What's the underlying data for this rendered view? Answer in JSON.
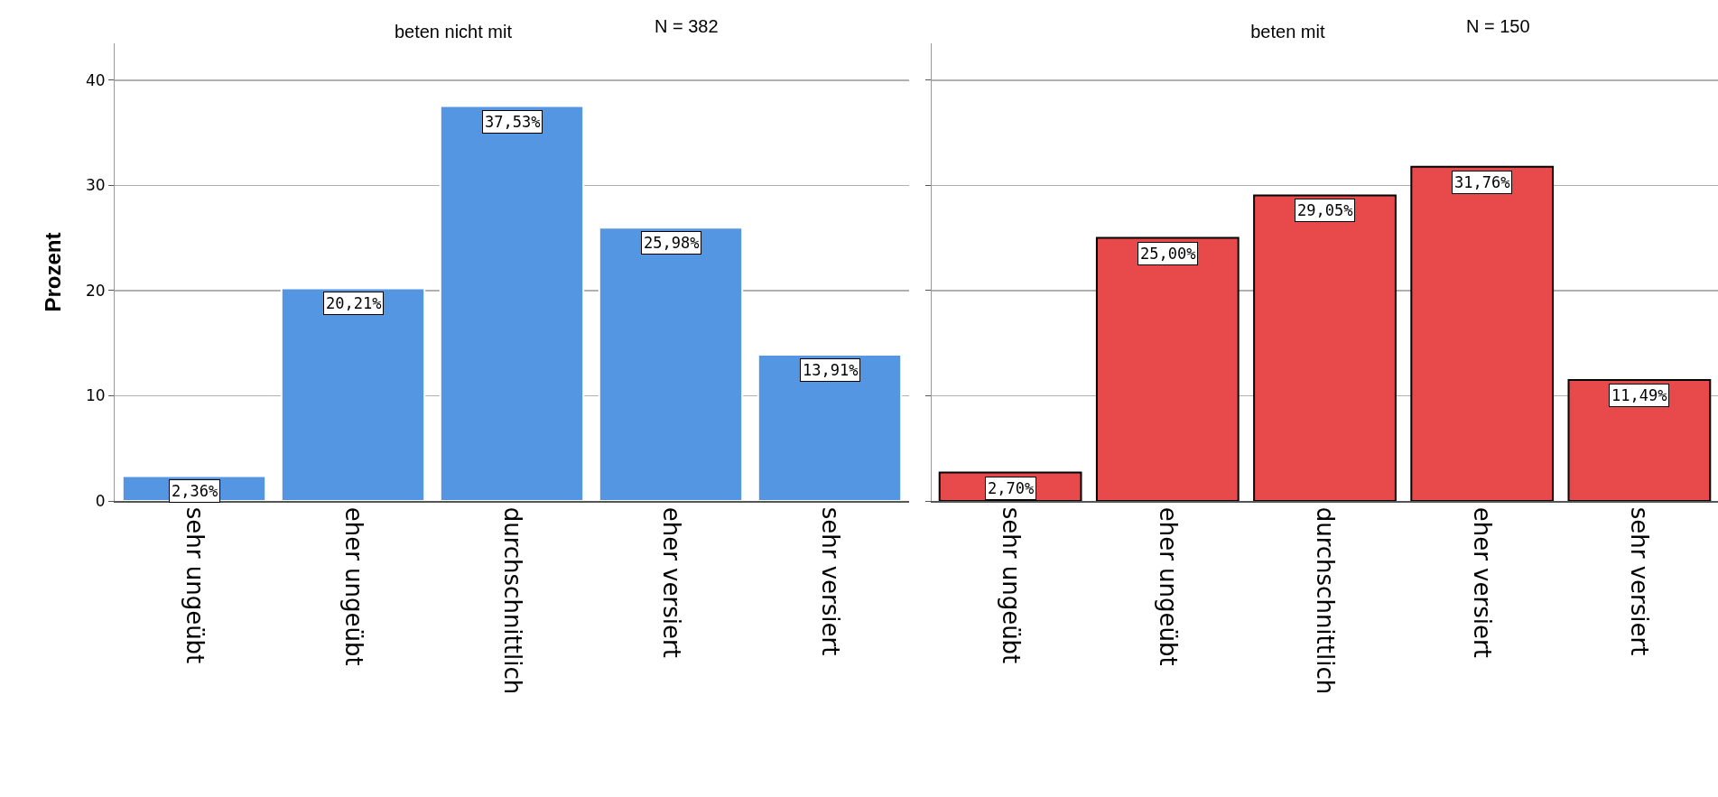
{
  "chart_data": [
    {
      "type": "bar",
      "title": "beten nicht mit",
      "ylabel": "Prozent",
      "annotations": [
        "N = 382"
      ],
      "categories": [
        "sehr ungeübt",
        "eher ungeübt",
        "durchschnittlich",
        "eher versiert",
        "sehr versiert"
      ],
      "values": [
        2.36,
        20.21,
        37.53,
        25.98,
        13.91
      ],
      "value_labels": [
        "2,36%",
        "20,21%",
        "37,53%",
        "25,98%",
        "13,91%"
      ],
      "color": "#5596e3",
      "ylim": [
        0,
        43.5
      ],
      "yticks": [
        0,
        10,
        20,
        30,
        40
      ],
      "grid": "y",
      "legend": false
    },
    {
      "type": "bar",
      "title": "beten mit",
      "annotations": [
        "N = 150"
      ],
      "categories": [
        "sehr ungeübt",
        "eher ungeübt",
        "durchschnittlich",
        "eher versiert",
        "sehr versiert"
      ],
      "values": [
        2.7,
        25.0,
        29.05,
        31.76,
        11.49
      ],
      "value_labels": [
        "2,70%",
        "25,00%",
        "29,05%",
        "31,76%",
        "11,49%"
      ],
      "color": "#e8494b",
      "ylim": [
        0,
        43.5
      ],
      "yticks": [
        0,
        10,
        20,
        30,
        40
      ],
      "grid": "y",
      "legend": false,
      "tick_labels": "x"
    }
  ]
}
